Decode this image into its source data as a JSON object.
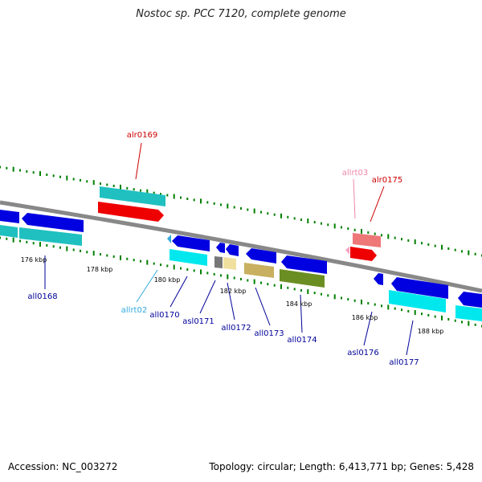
{
  "title": "Nostoc sp. PCC 7120, complete genome",
  "footer": {
    "accession": "Accession: NC_003272",
    "stats": "Topology: circular; Length: 6,413,771 bp; Genes: 5,428"
  },
  "colors": {
    "backbone": "#888888",
    "tick": "#008000",
    "blue_gene": "#0000e0",
    "cyan_gene": "#00e8ee",
    "teal_gene": "#20c0c0",
    "red_gene": "#ee0000",
    "pink_gene": "#ee7777",
    "olive_gene": "#6b8e23",
    "tan_gene": "#c8b060",
    "khaki_gene": "#f0e0a0",
    "gray_gene": "#777777",
    "label_blue": "#000099",
    "label_red": "#cc0000",
    "label_pink": "#ee88aa",
    "label_cyan": "#33aadd"
  },
  "kbp_labels": [
    "176 kbp",
    "178 kbp",
    "180 kbp",
    "182 kbp",
    "184 kbp",
    "186 kbp",
    "188 kbp"
  ],
  "gene_labels": {
    "alr0169": "alr0169",
    "allrt03": "allrt03",
    "alr0175": "alr0175",
    "all0168": "all0168",
    "allrt02": "allrt02",
    "all0170": "all0170",
    "asl0171": "asl0171",
    "all0172": "all0172",
    "all0173": "all0173",
    "all0174": "all0174",
    "asl0176": "asl0176",
    "all0177": "all0177"
  }
}
